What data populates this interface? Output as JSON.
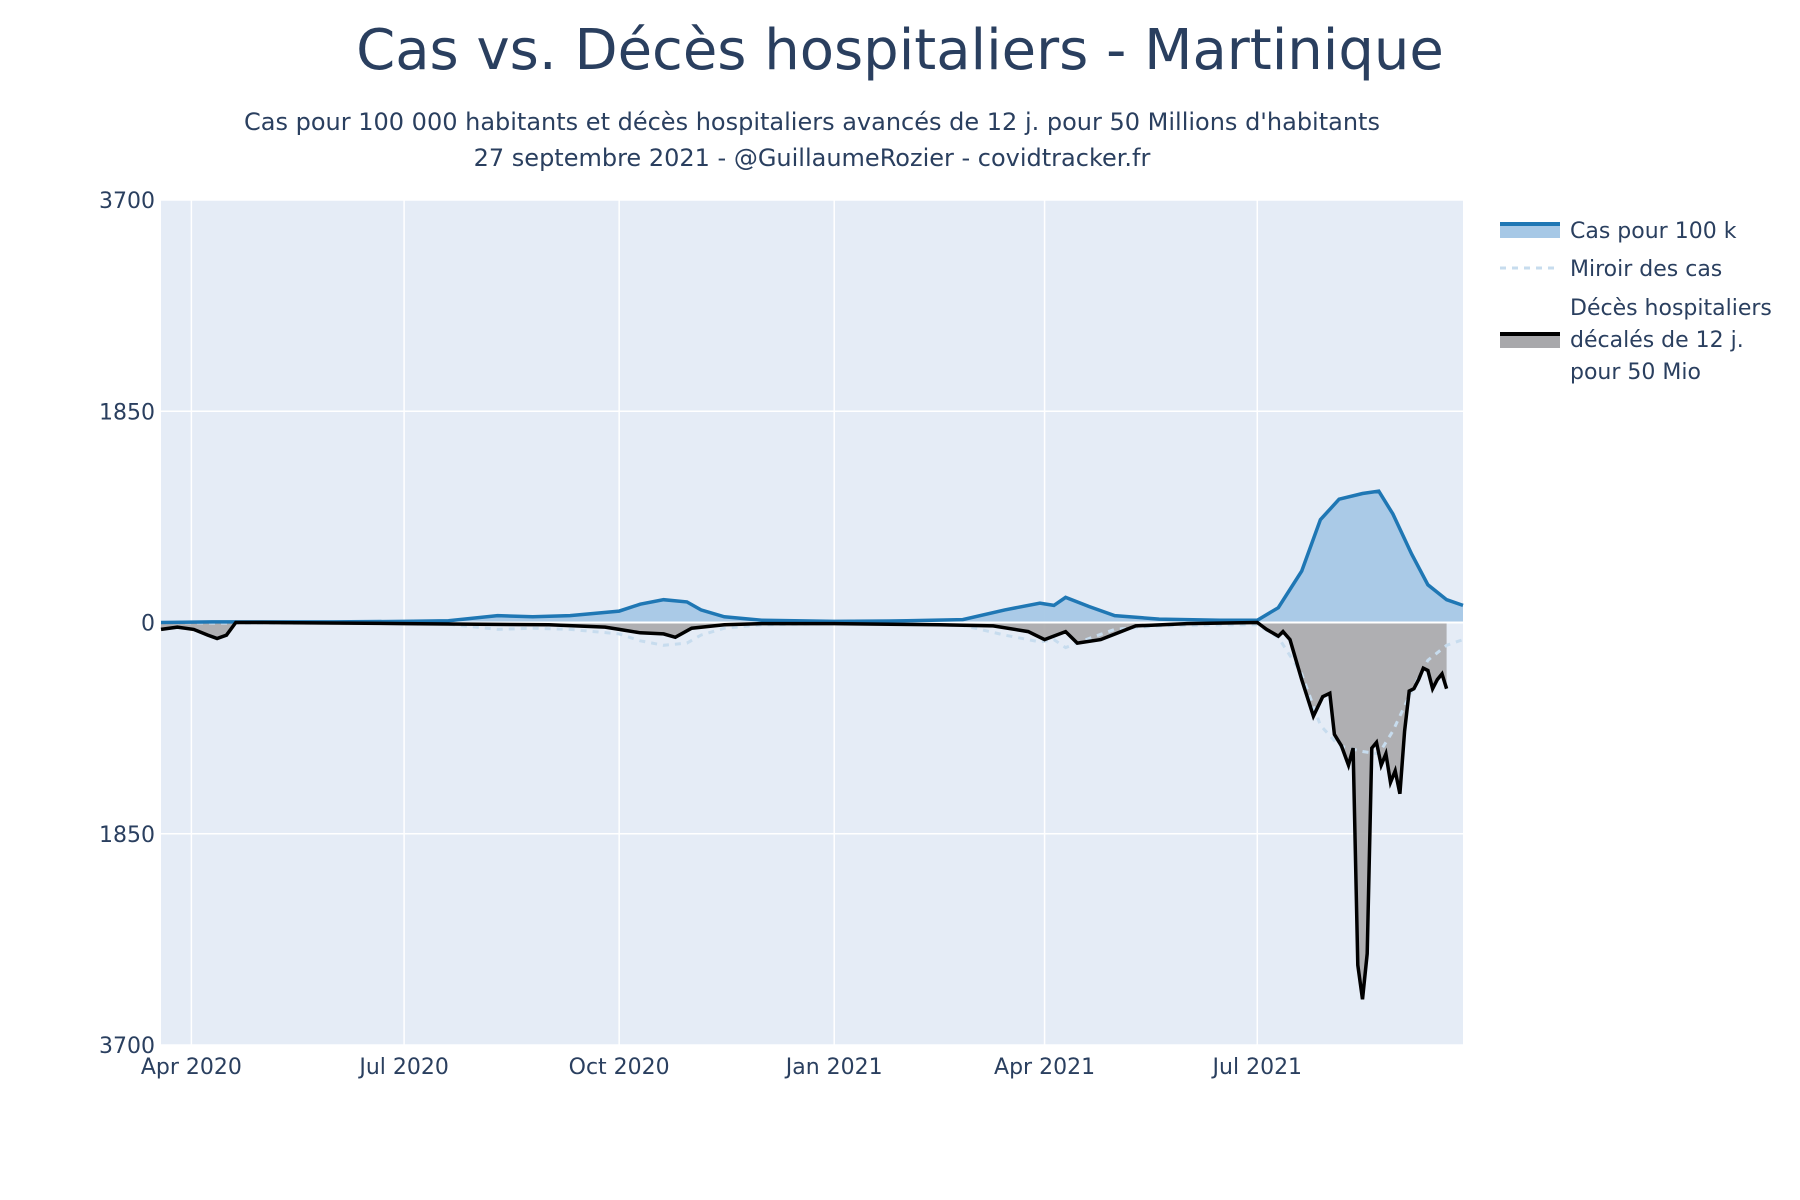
{
  "title": "Cas vs. Décès hospitaliers - Martinique",
  "subtitle_line1": "Cas pour 100 000 habitants et décès hospitaliers avancés de 12 j. pour 50 Millions d'habitants",
  "subtitle_line2": "27 septembre 2021 - @GuillaumeRozier - covidtracker.fr",
  "chart_data": {
    "type": "area",
    "title": "Cas vs. Décès hospitaliers - Martinique",
    "x_start": "2020-03-19",
    "x_end": "2021-09-27",
    "ylim": [
      -3700,
      3700
    ],
    "y_tick_values": [
      3700,
      1850,
      0,
      -1850,
      -3700
    ],
    "y_tick_labels": [
      "3700",
      "1850",
      "0",
      "1850",
      "3700"
    ],
    "x_tick_values": [
      "2020-04-01",
      "2020-07-01",
      "2020-10-01",
      "2021-01-01",
      "2021-04-01",
      "2021-07-01"
    ],
    "x_tick_labels": [
      "Apr 2020",
      "Jul 2020",
      "Oct 2020",
      "Jan 2021",
      "Apr 2021",
      "Jul 2021"
    ],
    "grid": true,
    "legend_position": "right",
    "series": [
      {
        "name": "Cas pour 100 k",
        "color": "#1f77b4",
        "fill": "#a6c8e6",
        "x": [
          "2020-03-19",
          "2020-04-10",
          "2020-05-01",
          "2020-06-01",
          "2020-07-01",
          "2020-07-20",
          "2020-08-10",
          "2020-08-25",
          "2020-09-10",
          "2020-10-01",
          "2020-10-10",
          "2020-10-20",
          "2020-10-30",
          "2020-11-05",
          "2020-11-15",
          "2020-12-01",
          "2020-12-15",
          "2021-01-01",
          "2021-02-01",
          "2021-02-25",
          "2021-03-15",
          "2021-03-30",
          "2021-04-05",
          "2021-04-10",
          "2021-04-20",
          "2021-05-01",
          "2021-05-20",
          "2021-06-15",
          "2021-07-01",
          "2021-07-10",
          "2021-07-20",
          "2021-07-28",
          "2021-08-05",
          "2021-08-15",
          "2021-08-22",
          "2021-08-28",
          "2021-09-05",
          "2021-09-12",
          "2021-09-20",
          "2021-09-27"
        ],
        "y": [
          0,
          5,
          5,
          5,
          10,
          15,
          60,
          50,
          60,
          100,
          160,
          200,
          180,
          110,
          50,
          20,
          15,
          10,
          15,
          25,
          110,
          170,
          150,
          220,
          140,
          60,
          30,
          20,
          20,
          130,
          450,
          900,
          1080,
          1130,
          1150,
          950,
          600,
          330,
          200,
          150
        ]
      },
      {
        "name": "Miroir des cas",
        "color": "#c7dcee",
        "x": [
          "2020-03-19",
          "2020-04-10",
          "2020-05-01",
          "2020-06-01",
          "2020-07-01",
          "2020-07-20",
          "2020-08-10",
          "2020-08-25",
          "2020-09-10",
          "2020-10-01",
          "2020-10-10",
          "2020-10-20",
          "2020-10-30",
          "2020-11-05",
          "2020-11-15",
          "2020-12-01",
          "2020-12-15",
          "2021-01-01",
          "2021-02-01",
          "2021-02-25",
          "2021-03-15",
          "2021-03-30",
          "2021-04-05",
          "2021-04-10",
          "2021-04-20",
          "2021-05-01",
          "2021-05-20",
          "2021-06-15",
          "2021-07-01",
          "2021-07-10",
          "2021-07-20",
          "2021-07-28",
          "2021-08-05",
          "2021-08-15",
          "2021-08-22",
          "2021-08-28",
          "2021-09-05",
          "2021-09-12",
          "2021-09-20",
          "2021-09-27"
        ],
        "y": [
          0,
          -5,
          -5,
          -5,
          -10,
          -15,
          -60,
          -50,
          -60,
          -100,
          -160,
          -200,
          -180,
          -110,
          -50,
          -20,
          -15,
          -10,
          -15,
          -25,
          -110,
          -170,
          -150,
          -220,
          -140,
          -60,
          -30,
          -20,
          -20,
          -130,
          -450,
          -900,
          -1080,
          -1130,
          -1150,
          -950,
          -600,
          -330,
          -200,
          -150
        ]
      },
      {
        "name": "Décès hospitaliers décalés de 12 j. pour 50 Mio",
        "legend_lines": [
          "Décès hospitaliers",
          "décalés de 12 j.",
          "pour 50 Mio"
        ],
        "color": "#000000",
        "fill": "#a8a8ab",
        "x": [
          "2020-03-19",
          "2020-03-26",
          "2020-04-02",
          "2020-04-08",
          "2020-04-12",
          "2020-04-16",
          "2020-04-20",
          "2020-05-01",
          "2020-07-01",
          "2020-09-01",
          "2020-09-25",
          "2020-10-01",
          "2020-10-10",
          "2020-10-20",
          "2020-10-25",
          "2020-11-01",
          "2020-11-15",
          "2020-12-01",
          "2021-01-01",
          "2021-02-15",
          "2021-03-10",
          "2021-03-25",
          "2021-04-01",
          "2021-04-10",
          "2021-04-15",
          "2021-04-25",
          "2021-05-10",
          "2021-06-01",
          "2021-07-01",
          "2021-07-05",
          "2021-07-10",
          "2021-07-12",
          "2021-07-15",
          "2021-07-20",
          "2021-07-25",
          "2021-07-29",
          "2021-08-01",
          "2021-08-03",
          "2021-08-06",
          "2021-08-09",
          "2021-08-11",
          "2021-08-13",
          "2021-08-15",
          "2021-08-17",
          "2021-08-19",
          "2021-08-21",
          "2021-08-23",
          "2021-08-25",
          "2021-08-27",
          "2021-08-29",
          "2021-08-31",
          "2021-09-02",
          "2021-09-04",
          "2021-09-06",
          "2021-09-08",
          "2021-09-10",
          "2021-09-12",
          "2021-09-14",
          "2021-09-16",
          "2021-09-18",
          "2021-09-20"
        ],
        "y": [
          -60,
          -40,
          -60,
          -110,
          -140,
          -110,
          0,
          0,
          -10,
          -20,
          -40,
          -60,
          -90,
          -100,
          -130,
          -50,
          -20,
          -10,
          -10,
          -20,
          -30,
          -80,
          -150,
          -80,
          -180,
          -150,
          -30,
          -10,
          0,
          -60,
          -120,
          -80,
          -150,
          -500,
          -820,
          -650,
          -620,
          -980,
          -1080,
          -1250,
          -1100,
          -3000,
          -3300,
          -2900,
          -1100,
          -1050,
          -1250,
          -1150,
          -1400,
          -1300,
          -1500,
          -950,
          -600,
          -580,
          -500,
          -400,
          -420,
          -580,
          -500,
          -450,
          -580
        ]
      }
    ]
  }
}
